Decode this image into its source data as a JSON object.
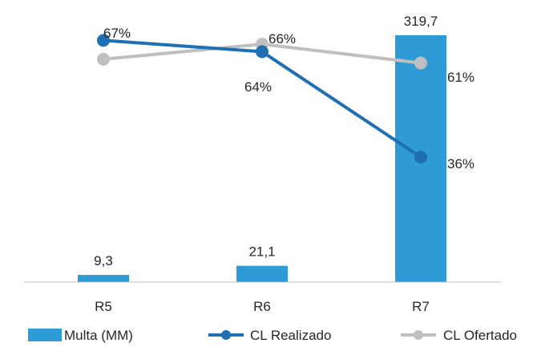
{
  "chart_data": {
    "type": "bar",
    "categories": [
      "R5",
      "R6",
      "R7"
    ],
    "bars": {
      "name": "Multa (MM)",
      "values": [
        9.3,
        21.1,
        319.7
      ],
      "labels": [
        "9,3",
        "21,1",
        "319,7"
      ],
      "color": "#2e9bd6"
    },
    "lines": [
      {
        "name": "CL Realizado",
        "type": "line",
        "values": [
          67,
          64,
          36
        ],
        "labels": [
          "67%",
          "64%",
          "36%"
        ],
        "color": "#1f6fb5"
      },
      {
        "name": "CL Ofertado",
        "type": "line",
        "values": [
          62,
          66,
          61
        ],
        "labels": [
          "",
          "66%",
          "61%"
        ],
        "color": "#bfbfbf"
      }
    ],
    "bar_axis": {
      "min": 0,
      "max": 319.7
    },
    "line_axis": {
      "min": 0,
      "max": 100
    },
    "grid": false,
    "legend_position": "bottom"
  }
}
